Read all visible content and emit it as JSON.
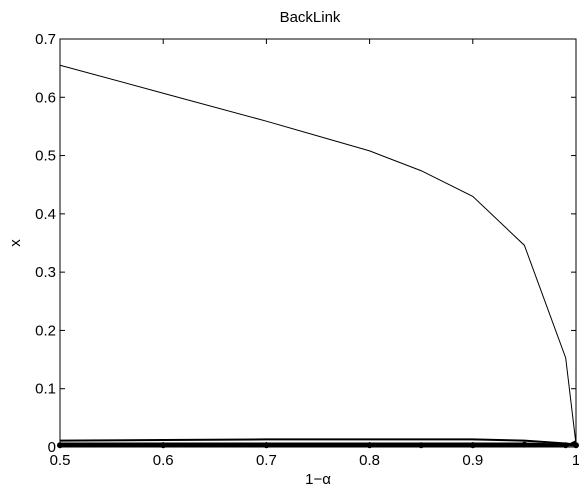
{
  "chart_data": {
    "type": "line",
    "title": "BackLink",
    "xlabel": "1−α",
    "ylabel": "x",
    "xlim": [
      0.5,
      1.0
    ],
    "ylim": [
      0,
      0.7
    ],
    "xticks": [
      "0.5",
      "0.6",
      "0.7",
      "0.8",
      "0.9",
      "1"
    ],
    "yticks": [
      "0",
      "0.1",
      "0.2",
      "0.3",
      "0.4",
      "0.5",
      "0.6",
      "0.7"
    ],
    "grid": false,
    "legend": "none",
    "x": [
      0.5,
      0.6,
      0.7,
      0.8,
      0.85,
      0.9,
      0.95,
      0.99,
      1.0
    ],
    "series": [
      {
        "values": [
          0.655,
          0.607,
          0.559,
          0.508,
          0.474,
          0.43,
          0.346,
          0.153,
          0.005
        ],
        "color": "#000000"
      },
      {
        "values": [
          0.011,
          0.012,
          0.013,
          0.013,
          0.013,
          0.013,
          0.011,
          0.006,
          0.004
        ],
        "color": "#000000"
      },
      {
        "values": [
          0.006,
          0.006,
          0.006,
          0.006,
          0.006,
          0.006,
          0.006,
          0.004,
          0.003
        ],
        "color": "#000000"
      },
      {
        "values": [
          0.003,
          0.003,
          0.003,
          0.003,
          0.003,
          0.003,
          0.004,
          0.003,
          0.003
        ],
        "color": "#000000",
        "marker": "dot"
      },
      {
        "values": [
          0.001,
          0.001,
          0.001,
          0.001,
          0.001,
          0.001,
          0.001,
          0.001,
          0.01
        ],
        "color": "#000000"
      }
    ]
  }
}
